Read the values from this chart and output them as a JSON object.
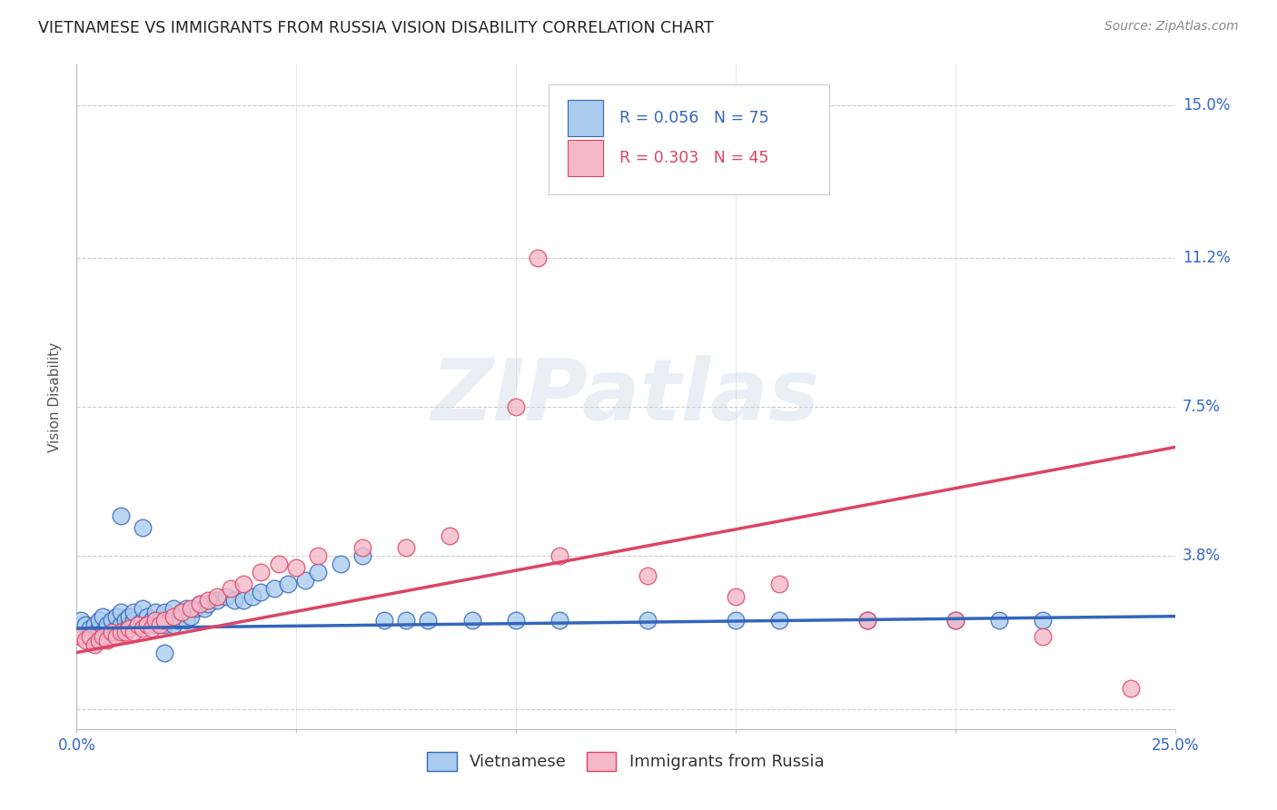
{
  "title": "VIETNAMESE VS IMMIGRANTS FROM RUSSIA VISION DISABILITY CORRELATION CHART",
  "source": "Source: ZipAtlas.com",
  "ylabel": "Vision Disability",
  "xlim": [
    0.0,
    0.25
  ],
  "ylim": [
    -0.005,
    0.16
  ],
  "ytick_vals": [
    0.0,
    0.038,
    0.075,
    0.112,
    0.15
  ],
  "ytick_labels": [
    "",
    "3.8%",
    "7.5%",
    "11.2%",
    "15.0%"
  ],
  "xtick_vals": [
    0.0,
    0.05,
    0.1,
    0.15,
    0.2,
    0.25
  ],
  "xtick_labels": [
    "0.0%",
    "",
    "",
    "",
    "",
    "25.0%"
  ],
  "R1": 0.056,
  "N1": 75,
  "R2": 0.303,
  "N2": 45,
  "color1": "#aaccee",
  "color2": "#f5b8c8",
  "line_color1": "#3366bb",
  "line_color2": "#dd4466",
  "watermark_text": "ZIPatlas",
  "title_fontsize": 12.5,
  "tick_fontsize": 12,
  "ylabel_fontsize": 11,
  "blue_x": [
    0.001,
    0.002,
    0.003,
    0.003,
    0.004,
    0.004,
    0.005,
    0.005,
    0.006,
    0.006,
    0.007,
    0.007,
    0.008,
    0.008,
    0.009,
    0.009,
    0.01,
    0.01,
    0.011,
    0.011,
    0.012,
    0.012,
    0.013,
    0.013,
    0.014,
    0.015,
    0.015,
    0.016,
    0.016,
    0.017,
    0.018,
    0.018,
    0.019,
    0.02,
    0.02,
    0.021,
    0.022,
    0.022,
    0.023,
    0.024,
    0.025,
    0.025,
    0.026,
    0.027,
    0.028,
    0.029,
    0.03,
    0.032,
    0.034,
    0.036,
    0.038,
    0.04,
    0.042,
    0.045,
    0.048,
    0.052,
    0.055,
    0.06,
    0.065,
    0.07,
    0.075,
    0.08,
    0.09,
    0.1,
    0.11,
    0.13,
    0.15,
    0.16,
    0.18,
    0.2,
    0.21,
    0.22,
    0.01,
    0.015,
    0.02
  ],
  "blue_y": [
    0.022,
    0.021,
    0.02,
    0.018,
    0.019,
    0.021,
    0.02,
    0.022,
    0.019,
    0.023,
    0.02,
    0.021,
    0.019,
    0.022,
    0.02,
    0.023,
    0.021,
    0.024,
    0.02,
    0.022,
    0.021,
    0.023,
    0.022,
    0.024,
    0.021,
    0.022,
    0.025,
    0.021,
    0.023,
    0.022,
    0.021,
    0.024,
    0.022,
    0.021,
    0.024,
    0.022,
    0.021,
    0.025,
    0.022,
    0.024,
    0.022,
    0.025,
    0.023,
    0.025,
    0.026,
    0.025,
    0.026,
    0.027,
    0.028,
    0.027,
    0.027,
    0.028,
    0.029,
    0.03,
    0.031,
    0.032,
    0.034,
    0.036,
    0.038,
    0.022,
    0.022,
    0.022,
    0.022,
    0.022,
    0.022,
    0.022,
    0.022,
    0.022,
    0.022,
    0.022,
    0.022,
    0.022,
    0.048,
    0.045,
    0.014
  ],
  "pink_x": [
    0.001,
    0.002,
    0.003,
    0.004,
    0.005,
    0.006,
    0.007,
    0.008,
    0.009,
    0.01,
    0.011,
    0.012,
    0.013,
    0.014,
    0.015,
    0.016,
    0.017,
    0.018,
    0.019,
    0.02,
    0.022,
    0.024,
    0.026,
    0.028,
    0.03,
    0.032,
    0.035,
    0.038,
    0.042,
    0.046,
    0.05,
    0.055,
    0.065,
    0.075,
    0.085,
    0.1,
    0.11,
    0.13,
    0.15,
    0.16,
    0.18,
    0.2,
    0.22,
    0.24,
    0.105
  ],
  "pink_y": [
    0.018,
    0.017,
    0.018,
    0.016,
    0.017,
    0.018,
    0.017,
    0.019,
    0.018,
    0.019,
    0.019,
    0.02,
    0.019,
    0.021,
    0.02,
    0.021,
    0.02,
    0.022,
    0.021,
    0.022,
    0.023,
    0.024,
    0.025,
    0.026,
    0.027,
    0.028,
    0.03,
    0.031,
    0.034,
    0.036,
    0.035,
    0.038,
    0.04,
    0.04,
    0.043,
    0.075,
    0.038,
    0.033,
    0.028,
    0.031,
    0.022,
    0.022,
    0.018,
    0.005,
    0.112
  ],
  "legend_R1_color": "#3366bb",
  "legend_R2_color": "#dd4466"
}
